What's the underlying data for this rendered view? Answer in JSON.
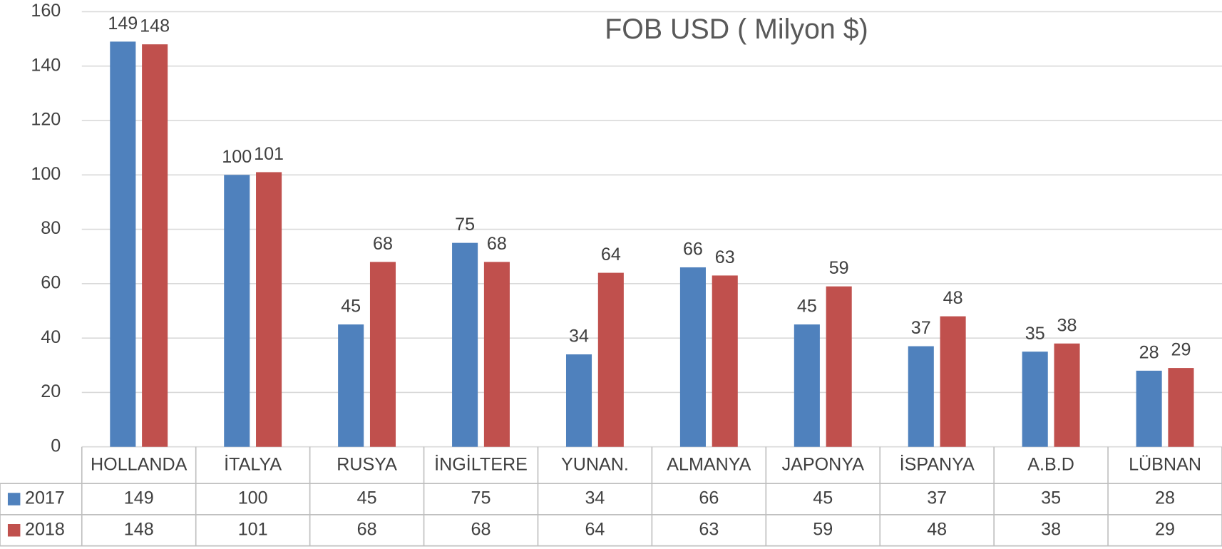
{
  "chart_data": {
    "type": "bar",
    "subtitle": "FOB USD ( Milyon $)",
    "categories": [
      "HOLLANDA",
      "İTALYA",
      "RUSYA",
      "İNGİLTERE",
      "YUNAN.",
      "ALMANYA",
      "JAPONYA",
      "İSPANYA",
      "A.B.D",
      "LÜBNAN"
    ],
    "series": [
      {
        "name": "2017",
        "color": "#4f81bd",
        "values": [
          149,
          100,
          45,
          75,
          34,
          66,
          45,
          37,
          35,
          28
        ]
      },
      {
        "name": "2018",
        "color": "#c0504d",
        "values": [
          148,
          101,
          68,
          68,
          64,
          63,
          59,
          48,
          38,
          29
        ]
      }
    ],
    "ylim": [
      0,
      160
    ],
    "yticks": [
      0,
      20,
      40,
      60,
      80,
      100,
      120,
      140,
      160
    ],
    "grid": true,
    "data_table": true
  }
}
